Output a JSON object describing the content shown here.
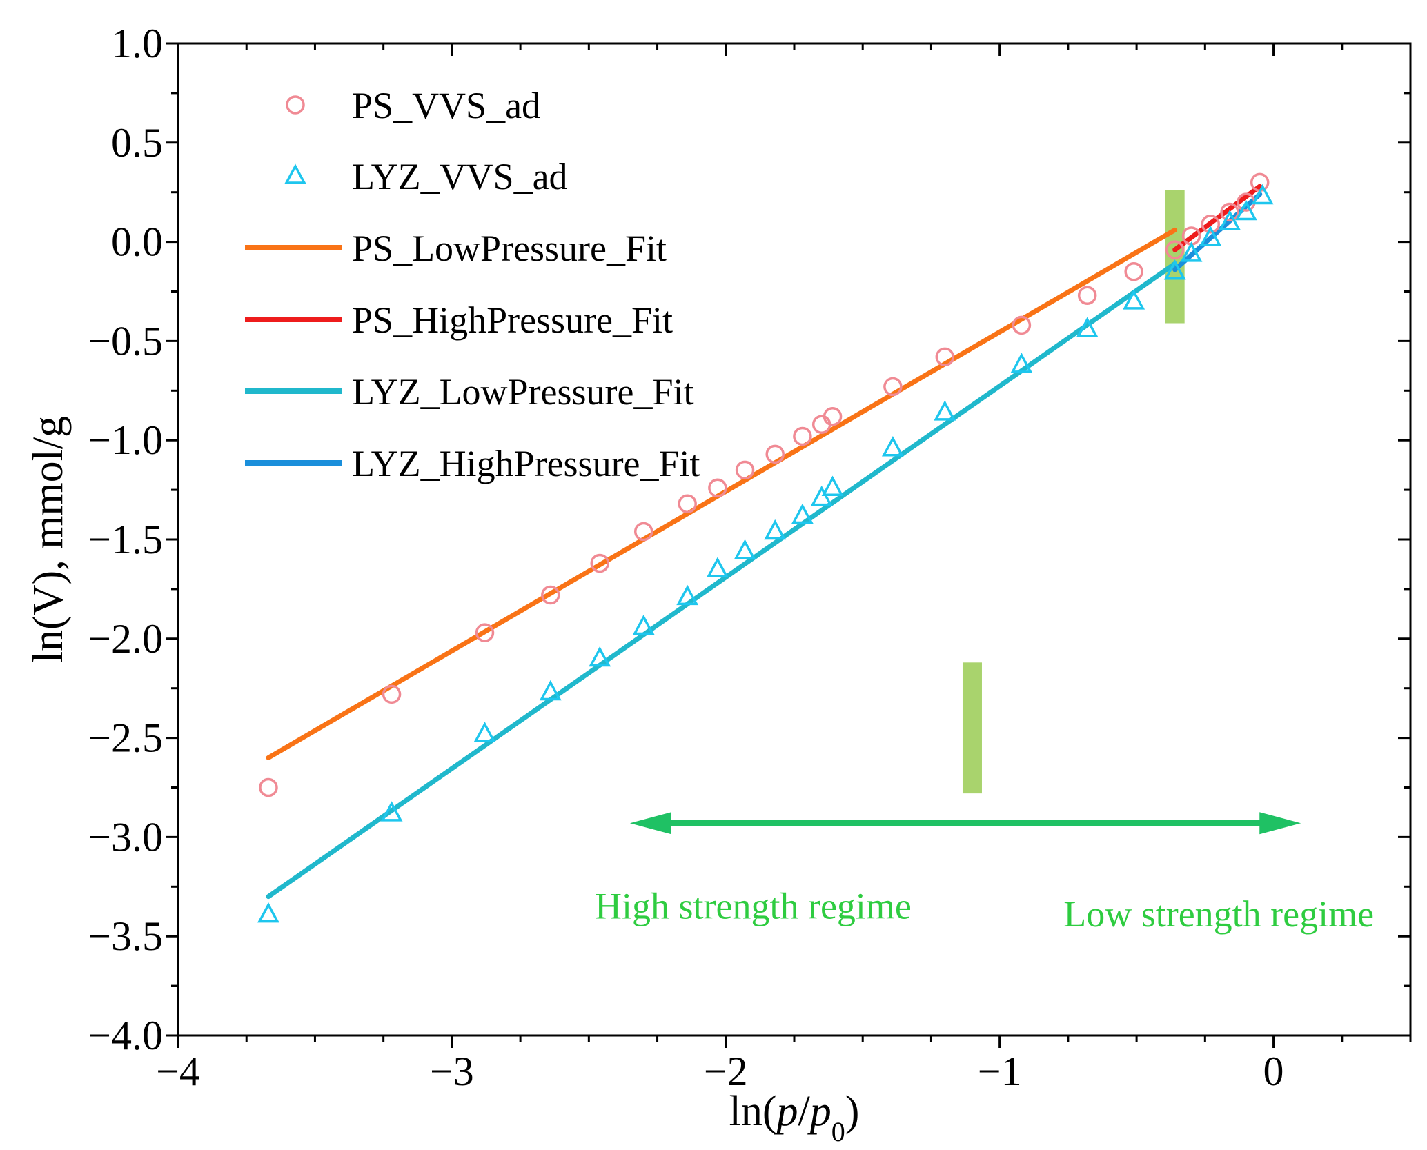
{
  "chart_data": {
    "type": "scatter",
    "xlabel_parts": [
      "ln(",
      "p",
      "/",
      "p",
      "0",
      ")"
    ],
    "ylabel": "ln(V), mmol/g",
    "xlim": [
      -4,
      0.5
    ],
    "ylim": [
      -4,
      1
    ],
    "xticks": [
      -4,
      -3,
      -2,
      -1,
      0
    ],
    "xtick_labels": [
      "−4",
      "−3",
      "−2",
      "−1",
      "0"
    ],
    "yticks": [
      -4,
      -3.5,
      -3,
      -2.5,
      -2,
      -1.5,
      -1,
      -0.5,
      0,
      0.5,
      1
    ],
    "ytick_labels": [
      "−4.0",
      "−3.5",
      "−3.0",
      "−2.5",
      "−2.0",
      "−1.5",
      "−1.0",
      "−0.5",
      "0.0",
      "0.5",
      "1.0"
    ],
    "legend_position": "top-left",
    "series": [
      {
        "name": "PS_VVS_ad",
        "kind": "scatter",
        "marker": "circle",
        "color": "#f08a94",
        "points": [
          [
            -3.67,
            -2.75
          ],
          [
            -3.22,
            -2.28
          ],
          [
            -2.88,
            -1.97
          ],
          [
            -2.64,
            -1.78
          ],
          [
            -2.46,
            -1.62
          ],
          [
            -2.3,
            -1.46
          ],
          [
            -2.14,
            -1.32
          ],
          [
            -2.03,
            -1.24
          ],
          [
            -1.93,
            -1.15
          ],
          [
            -1.82,
            -1.07
          ],
          [
            -1.72,
            -0.98
          ],
          [
            -1.65,
            -0.92
          ],
          [
            -1.61,
            -0.88
          ],
          [
            -1.39,
            -0.73
          ],
          [
            -1.2,
            -0.58
          ],
          [
            -0.92,
            -0.42
          ],
          [
            -0.68,
            -0.27
          ],
          [
            -0.51,
            -0.15
          ],
          [
            -0.36,
            -0.04
          ],
          [
            -0.3,
            0.03
          ],
          [
            -0.23,
            0.09
          ],
          [
            -0.16,
            0.15
          ],
          [
            -0.1,
            0.2
          ],
          [
            -0.05,
            0.3
          ]
        ]
      },
      {
        "name": "LYZ_VVS_ad",
        "kind": "scatter",
        "marker": "triangle",
        "color": "#1ec6ee",
        "points": [
          [
            -3.67,
            -3.39
          ],
          [
            -3.22,
            -2.88
          ],
          [
            -2.88,
            -2.48
          ],
          [
            -2.64,
            -2.27
          ],
          [
            -2.46,
            -2.1
          ],
          [
            -2.3,
            -1.94
          ],
          [
            -2.14,
            -1.79
          ],
          [
            -2.03,
            -1.65
          ],
          [
            -1.93,
            -1.56
          ],
          [
            -1.82,
            -1.46
          ],
          [
            -1.72,
            -1.38
          ],
          [
            -1.65,
            -1.29
          ],
          [
            -1.61,
            -1.24
          ],
          [
            -1.39,
            -1.04
          ],
          [
            -1.2,
            -0.86
          ],
          [
            -0.92,
            -0.62
          ],
          [
            -0.68,
            -0.44
          ],
          [
            -0.51,
            -0.3
          ],
          [
            -0.36,
            -0.15
          ],
          [
            -0.3,
            -0.06
          ],
          [
            -0.23,
            0.02
          ],
          [
            -0.16,
            0.1
          ],
          [
            -0.1,
            0.15
          ],
          [
            -0.04,
            0.23
          ]
        ]
      },
      {
        "name": "PS_LowPressure_Fit",
        "kind": "line",
        "color": "#f97316",
        "points": [
          [
            -3.67,
            -2.6
          ],
          [
            -0.36,
            0.06
          ]
        ]
      },
      {
        "name": "PS_HighPressure_Fit",
        "kind": "line",
        "color": "#ee1c1c",
        "points": [
          [
            -0.36,
            -0.04
          ],
          [
            -0.05,
            0.28
          ]
        ]
      },
      {
        "name": "LYZ_LowPressure_Fit",
        "kind": "line",
        "color": "#20b8cc",
        "points": [
          [
            -3.67,
            -3.3
          ],
          [
            -0.36,
            -0.11
          ]
        ]
      },
      {
        "name": "LYZ_HighPressure_Fit",
        "kind": "line",
        "color": "#1a8fdb",
        "points": [
          [
            -0.36,
            -0.14
          ],
          [
            -0.05,
            0.24
          ]
        ]
      }
    ],
    "annotations": {
      "boundary_bars": [
        {
          "x": -0.36,
          "y_range": [
            -0.41,
            0.26
          ],
          "color": "#8cc43c"
        },
        {
          "x": -1.1,
          "y_range": [
            -2.78,
            -2.12
          ],
          "color": "#8cc43c"
        }
      ],
      "arrow": {
        "x_range": [
          -2.35,
          0.1
        ],
        "y": -2.93,
        "color": "#1fc164"
      },
      "regime_labels": [
        {
          "text": "High strength regime",
          "x": -1.9,
          "y": -3.41,
          "color": "#2ecc40"
        },
        {
          "text": "Low strength regime",
          "x": -0.2,
          "y": -3.45,
          "color": "#2ecc40"
        }
      ]
    }
  }
}
